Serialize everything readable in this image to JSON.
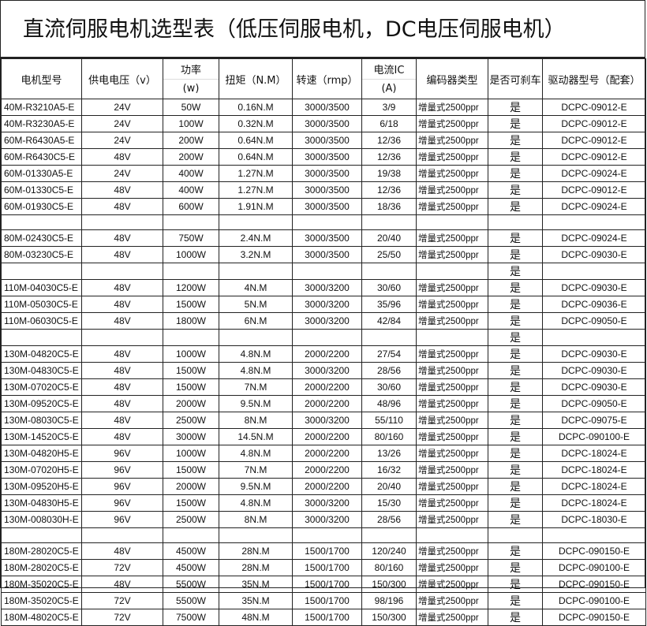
{
  "title": "直流伺服电机选型表（低压伺服电机，DC电压伺服电机）",
  "headers": {
    "model": "电机型号",
    "voltage": "供电电压（v）",
    "power_top": "功率",
    "power_bottom": "(w)",
    "torque": "扭矩（N.M）",
    "speed": "转速（rmp）",
    "current_top": "电流IC",
    "current_bottom": "(A)",
    "encoder": "编码器类型",
    "brake": "是否可刹车",
    "driver": "驱动器型号（配套）"
  },
  "rows": [
    [
      "40M-R3210A5-E",
      "24V",
      "50W",
      "0.16N.M",
      "3000/3500",
      "3/9",
      "增量式2500ppr",
      "是",
      "DCPC-09012-E"
    ],
    [
      "40M-R3230A5-E",
      "24V",
      "100W",
      "0.32N.M",
      "3000/3500",
      "6/18",
      "增量式2500ppr",
      "是",
      "DCPC-09012-E"
    ],
    [
      "60M-R6430A5-E",
      "24V",
      "200W",
      "0.64N.M",
      "3000/3500",
      "12/36",
      "增量式2500ppr",
      "是",
      "DCPC-09012-E"
    ],
    [
      "60M-R6430C5-E",
      "48V",
      "200W",
      "0.64N.M",
      "3000/3500",
      "12/36",
      "增量式2500ppr",
      "是",
      "DCPC-09012-E"
    ],
    [
      "60M-01330A5-E",
      "24V",
      "400W",
      "1.27N.M",
      "3000/3500",
      "19/38",
      "增量式2500ppr",
      "是",
      "DCPC-09024-E"
    ],
    [
      "60M-01330C5-E",
      "48V",
      "400W",
      "1.27N.M",
      "3000/3500",
      "12/36",
      "增量式2500ppr",
      "是",
      "DCPC-09012-E"
    ],
    [
      "60M-01930C5-E",
      "48V",
      "600W",
      "1.91N.M",
      "3000/3500",
      "18/36",
      "增量式2500ppr",
      "是",
      "DCPC-09024-E"
    ],
    [
      "",
      "",
      "",
      "",
      "",
      "",
      "",
      "",
      ""
    ],
    [
      "80M-02430C5-E",
      "48V",
      "750W",
      "2.4N.M",
      "3000/3500",
      "20/40",
      "增量式2500ppr",
      "是",
      "DCPC-09024-E"
    ],
    [
      "80M-03230C5-E",
      "48V",
      "1000W",
      "3.2N.M",
      "3000/3500",
      "25/50",
      "增量式2500ppr",
      "是",
      "DCPC-09030-E"
    ],
    [
      "",
      "",
      "",
      "",
      "",
      "",
      "",
      "是",
      ""
    ],
    [
      "110M-04030C5-E",
      "48V",
      "1200W",
      "4N.M",
      "3000/3200",
      "30/60",
      "增量式2500ppr",
      "是",
      "DCPC-09030-E"
    ],
    [
      "110M-05030C5-E",
      "48V",
      "1500W",
      "5N.M",
      "3000/3200",
      "35/96",
      "增量式2500ppr",
      "是",
      "DCPC-09036-E"
    ],
    [
      "110M-06030C5-E",
      "48V",
      "1800W",
      "6N.M",
      "3000/3200",
      "42/84",
      "增量式2500ppr",
      "是",
      "DCPC-09050-E"
    ],
    [
      "",
      "",
      "",
      "",
      "",
      "",
      "",
      "是",
      ""
    ],
    [
      "130M-04820C5-E",
      "48V",
      "1000W",
      "4.8N.M",
      "2000/2200",
      "27/54",
      "增量式2500ppr",
      "是",
      "DCPC-09030-E"
    ],
    [
      "130M-04830C5-E",
      "48V",
      "1500W",
      "4.8N.M",
      "3000/3200",
      "28/56",
      "增量式2500ppr",
      "是",
      "DCPC-09030-E"
    ],
    [
      "130M-07020C5-E",
      "48V",
      "1500W",
      "7N.M",
      "2000/2200",
      "30/60",
      "增量式2500ppr",
      "是",
      "DCPC-09030-E"
    ],
    [
      "130M-09520C5-E",
      "48V",
      "2000W",
      "9.5N.M",
      "2000/2200",
      "48/96",
      "增量式2500ppr",
      "是",
      "DCPC-09050-E"
    ],
    [
      "130M-08030C5-E",
      "48V",
      "2500W",
      "8N.M",
      "3000/3200",
      "55/110",
      "增量式2500ppr",
      "是",
      "DCPC-09075-E"
    ],
    [
      "130M-14520C5-E",
      "48V",
      "3000W",
      "14.5N.M",
      "2000/2200",
      "80/160",
      "增量式2500ppr",
      "是",
      "DCPC-090100-E"
    ],
    [
      "130M-04820H5-E",
      "96V",
      "1000W",
      "4.8N.M",
      "2000/2200",
      "13/26",
      "增量式2500ppr",
      "是",
      "DCPC-18024-E"
    ],
    [
      "130M-07020H5-E",
      "96V",
      "1500W",
      "7N.M",
      "2000/2200",
      "16/32",
      "增量式2500ppr",
      "是",
      "DCPC-18024-E"
    ],
    [
      "130M-09520H5-E",
      "96V",
      "2000W",
      "9.5N.M",
      "2000/2200",
      "20/40",
      "增量式2500ppr",
      "是",
      "DCPC-18024-E"
    ],
    [
      "130M-04830H5-E",
      "96V",
      "1500W",
      "4.8N.M",
      "3000/3200",
      "15/30",
      "增量式2500ppr",
      "是",
      "DCPC-18024-E"
    ],
    [
      "130M-008030H-E",
      "96V",
      "2500W",
      "8N.M",
      "3000/3200",
      "28/56",
      "增量式2500ppr",
      "是",
      "DCPC-18030-E"
    ],
    [
      "",
      "",
      "",
      "",
      "",
      "",
      "",
      "",
      ""
    ],
    [
      "180M-28020C5-E",
      "48V",
      "4500W",
      "28N.M",
      "1500/1700",
      "120/240",
      "增量式2500ppr",
      "是",
      "DCPC-090150-E"
    ],
    [
      "180M-28020C5-E",
      "72V",
      "4500W",
      "28N.M",
      "1500/1700",
      "80/160",
      "增量式2500ppr",
      "是",
      "DCPC-090100-E"
    ],
    [
      "180M-35020C5-E",
      "48V",
      "5500W",
      "35N.M",
      "1500/1700",
      "150/300",
      "增量式2500ppr",
      "是",
      "DCPC-090150-E"
    ],
    [
      "180M-35020C5-E",
      "72V",
      "5500W",
      "35N.M",
      "1500/1700",
      "98/196",
      "增量式2500ppr",
      "是",
      "DCPC-090100-E"
    ],
    [
      "180M-48020C5-E",
      "72V",
      "7500W",
      "48N.M",
      "1500/1700",
      "150/300",
      "增量式2500ppr",
      "是",
      "DCPC-090150-E"
    ]
  ]
}
